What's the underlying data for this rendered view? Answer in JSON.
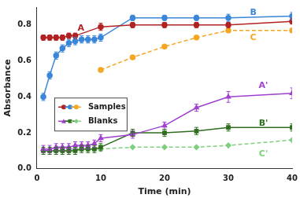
{
  "chart_data": {
    "type": "line",
    "x_label": "Time (min)",
    "y_label": "Absorbance",
    "xlim": [
      0,
      40
    ],
    "xticks": [
      0,
      10,
      20,
      30,
      40
    ],
    "ylim": [
      0,
      0.9
    ],
    "yticks": [
      {
        "value": 0,
        "label": "0.0"
      },
      0.2,
      0.4,
      0.6,
      0.8
    ],
    "grid": false,
    "legend": "lower left",
    "groups": [
      {
        "name": "Samples",
        "members": [
          "A",
          "B",
          "C"
        ]
      },
      {
        "name": "Blanks",
        "members": [
          "A'",
          "B'",
          "C'"
        ]
      }
    ],
    "series": [
      {
        "name": "A",
        "color": "#b22222",
        "marker": "circle",
        "line_style": "solid",
        "x": [
          1,
          2,
          3,
          4,
          5,
          6,
          10,
          15,
          20,
          25,
          30,
          40
        ],
        "values": [
          0.73,
          0.73,
          0.73,
          0.73,
          0.74,
          0.74,
          0.79,
          0.8,
          0.8,
          0.8,
          0.8,
          0.82
        ],
        "errors": [
          0.015,
          0.015,
          0.015,
          0.015,
          0.015,
          0.015,
          0.02,
          0.015,
          0.015,
          0.015,
          0.015,
          0.015
        ]
      },
      {
        "name": "B",
        "color": "#3a86d9",
        "marker": "circle",
        "line_style": "solid",
        "x": [
          1,
          2,
          3,
          4,
          5,
          6,
          7,
          8,
          9,
          10,
          15,
          20,
          25,
          30,
          40
        ],
        "values": [
          0.4,
          0.52,
          0.63,
          0.67,
          0.7,
          0.71,
          0.72,
          0.72,
          0.72,
          0.73,
          0.84,
          0.84,
          0.84,
          0.84,
          0.85
        ],
        "errors": [
          0.02,
          0.02,
          0.02,
          0.02,
          0.02,
          0.02,
          0.02,
          0.02,
          0.02,
          0.02,
          0.015,
          0.015,
          0.015,
          0.02,
          0.02
        ]
      },
      {
        "name": "C",
        "color": "#f5a623",
        "marker": "circle",
        "line_style": "dashed",
        "x": [
          10,
          15,
          20,
          25,
          30,
          40
        ],
        "values": [
          0.55,
          0.62,
          0.68,
          0.73,
          0.77,
          0.77
        ]
      },
      {
        "name": "A'",
        "color": "#a040d0",
        "marker": "triangle",
        "line_style": "solid",
        "x": [
          1,
          2,
          3,
          4,
          5,
          6,
          7,
          8,
          9,
          10,
          15,
          20,
          25,
          30,
          40
        ],
        "values": [
          0.11,
          0.11,
          0.12,
          0.12,
          0.12,
          0.13,
          0.13,
          0.13,
          0.14,
          0.17,
          0.19,
          0.24,
          0.34,
          0.4,
          0.42
        ],
        "errors": [
          0.02,
          0.02,
          0.02,
          0.02,
          0.02,
          0.02,
          0.02,
          0.02,
          0.02,
          0.02,
          0.02,
          0.02,
          0.02,
          0.03,
          0.03
        ]
      },
      {
        "name": "B'",
        "color": "#2f6e1e",
        "marker": "square",
        "line_style": "solid",
        "x": [
          1,
          2,
          3,
          4,
          5,
          6,
          7,
          8,
          9,
          10,
          15,
          20,
          25,
          30,
          40
        ],
        "values": [
          0.1,
          0.1,
          0.1,
          0.1,
          0.1,
          0.1,
          0.11,
          0.11,
          0.11,
          0.12,
          0.2,
          0.2,
          0.21,
          0.23,
          0.23
        ],
        "errors": [
          0.02,
          0.02,
          0.02,
          0.02,
          0.02,
          0.02,
          0.02,
          0.02,
          0.02,
          0.02,
          0.02,
          0.02,
          0.02,
          0.02,
          0.02
        ]
      },
      {
        "name": "C'",
        "color": "#7ed07e",
        "marker": "diamond",
        "line_style": "dashed",
        "x": [
          1,
          2,
          3,
          4,
          5,
          6,
          7,
          8,
          9,
          10,
          15,
          20,
          25,
          30,
          40
        ],
        "values": [
          0.1,
          0.1,
          0.1,
          0.1,
          0.1,
          0.11,
          0.11,
          0.11,
          0.11,
          0.11,
          0.12,
          0.12,
          0.12,
          0.13,
          0.16
        ]
      }
    ],
    "annotations": [
      {
        "text": "A",
        "x": 6.9,
        "y": 0.78
      },
      {
        "text": "B",
        "x": 33.9,
        "y": 0.87
      },
      {
        "text": "C",
        "x": 33.9,
        "y": 0.73
      },
      {
        "text": "A'",
        "x": 35.5,
        "y": 0.46
      },
      {
        "text": "B'",
        "x": 35.5,
        "y": 0.25
      },
      {
        "text": "C'",
        "x": 35.5,
        "y": 0.08
      }
    ]
  }
}
